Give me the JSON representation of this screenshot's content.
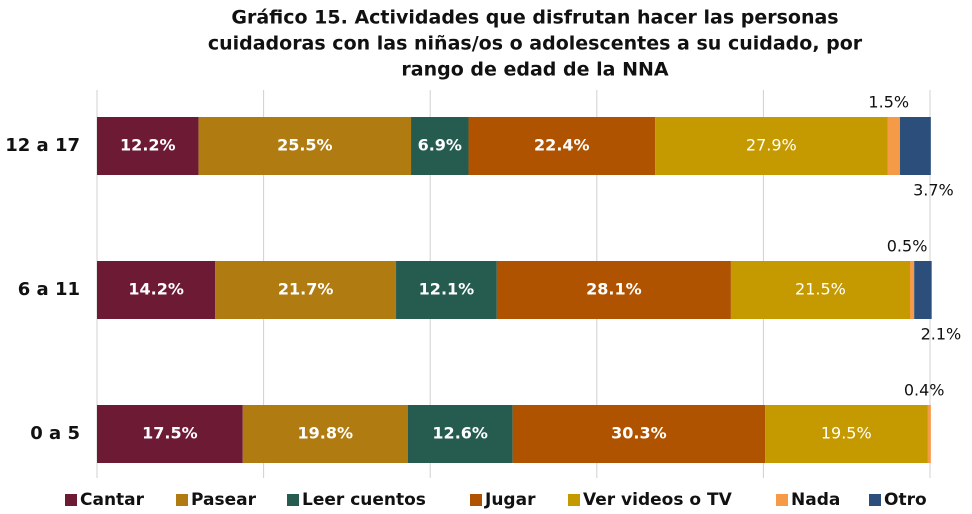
{
  "chart_data": {
    "type": "stacked_barh",
    "title": [
      "Gráfico 15. Actividades que disfrutan hacer las personas",
      "cuidadoras con las niñas/os o adolescentes  a su cuidado, por",
      "rango de edad de la NNA"
    ],
    "categories": [
      "12 a 17",
      "6 a 11",
      "0 a 5"
    ],
    "xlim": [
      0,
      100
    ],
    "xticks": [
      0,
      20,
      40,
      60,
      80,
      100
    ],
    "grid": true,
    "legend": "bottom",
    "series": [
      {
        "name": "Cantar",
        "color": "#6d1a35",
        "values": [
          12.2,
          14.2,
          17.5
        ],
        "value_labels": [
          "12.2%",
          "14.2%",
          "17.5%"
        ]
      },
      {
        "name": "Pasear",
        "color": "#b07c12",
        "values": [
          25.5,
          21.7,
          19.8
        ],
        "value_labels": [
          "25.5%",
          "21.7%",
          "19.8%"
        ]
      },
      {
        "name": "Leer cuentos",
        "color": "#255c4f",
        "values": [
          6.9,
          12.1,
          12.6
        ],
        "value_labels": [
          "6.9%",
          "12.1%",
          "12.6%"
        ]
      },
      {
        "name": "Jugar",
        "color": "#b05300",
        "values": [
          22.4,
          28.1,
          30.3
        ],
        "value_labels": [
          "22.4%",
          "28.1%",
          "30.3%"
        ]
      },
      {
        "name": "Ver videos o TV",
        "color": "#c49a00",
        "values": [
          27.9,
          21.5,
          19.5
        ],
        "value_labels": [
          "27.9%",
          "21.5%",
          "19.5%"
        ]
      },
      {
        "name": "Nada",
        "color": "#f59a46",
        "values": [
          1.5,
          0.5,
          0.4
        ],
        "value_labels": [
          "1.5%",
          "0.5%",
          "0.4%"
        ]
      },
      {
        "name": "Otro",
        "color": "#2b4f7a",
        "values": [
          3.7,
          2.1,
          null
        ],
        "value_labels": [
          "3.7%",
          "2.1%",
          null
        ]
      }
    ]
  }
}
